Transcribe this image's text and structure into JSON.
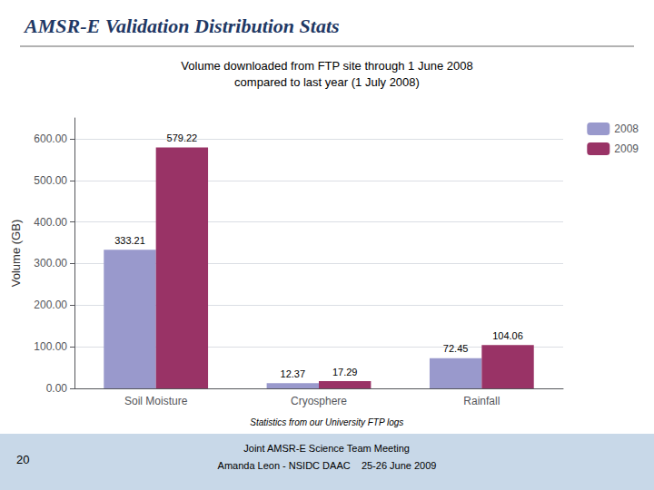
{
  "chart_data": {
    "type": "bar",
    "title": "AMSR-E Validation Distribution Stats",
    "subtitle": "Volume downloaded from FTP site through 1 June 2008\ncompared to last year (1 July 2008)",
    "ylabel": "Volume (GB)",
    "categories": [
      "Soil Moisture",
      "Cryosphere",
      "Rainfall"
    ],
    "series": [
      {
        "name": "2008",
        "color": "#9999cc",
        "values": [
          333.21,
          12.37,
          72.45
        ]
      },
      {
        "name": "2009",
        "color": "#993366",
        "values": [
          579.22,
          17.29,
          104.06
        ]
      }
    ],
    "ylim": [
      0,
      650
    ],
    "yticks": [
      {
        "value": 0,
        "label": "0.00"
      },
      {
        "value": 100,
        "label": "100.00"
      },
      {
        "value": 200,
        "label": "200.00"
      },
      {
        "value": 300,
        "label": "300.00"
      },
      {
        "value": 400,
        "label": "400.00"
      },
      {
        "value": 500,
        "label": "500.00"
      },
      {
        "value": 600,
        "label": "600.00"
      }
    ],
    "grid": true,
    "legend": "right",
    "data_labels": true,
    "annotations": [
      "Statistics from our University FTP logs",
      "Joint AMSR-E Science Team Meeting",
      "Amanda Leon - NSIDC DAAC    25-26 June 2009",
      "20"
    ]
  }
}
